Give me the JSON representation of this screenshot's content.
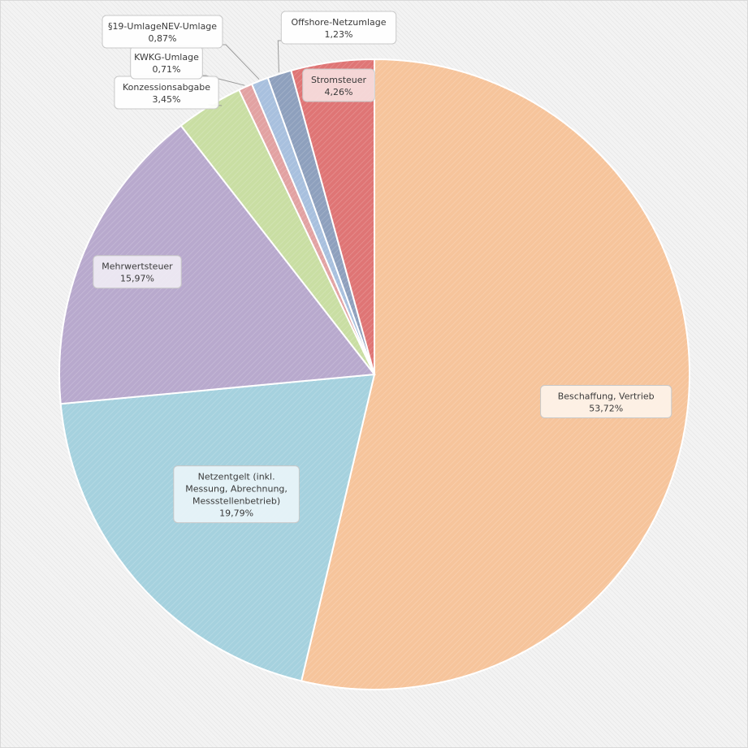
{
  "chart_data": {
    "type": "pie",
    "title": "",
    "slices": [
      {
        "label": "Beschaffung, Vertrieb",
        "value": 53.72,
        "value_text": "53,72%",
        "color": "#f6c49b"
      },
      {
        "label": "Netzentgelt (inkl. Messung, Abrechnung, Messstellenbetrieb)",
        "value": 19.79,
        "value_text": "19,79%",
        "color": "#a5d1de"
      },
      {
        "label": "Mehrwertsteuer",
        "value": 15.97,
        "value_text": "15,97%",
        "color": "#b8a9cd"
      },
      {
        "label": "Konzessionsabgabe",
        "value": 3.45,
        "value_text": "3,45%",
        "color": "#c9dea3"
      },
      {
        "label": "KWKG-Umlage",
        "value": 0.71,
        "value_text": "0,71%",
        "color": "#e2a2a2"
      },
      {
        "label": "§19-UmlageNEV-Umlage",
        "value": 0.87,
        "value_text": "0,87%",
        "color": "#a8c0de"
      },
      {
        "label": "Offshore-Netzumlage",
        "value": 1.23,
        "value_text": "1,23%",
        "color": "#8ea0bd"
      },
      {
        "label": "Stromsteuer",
        "value": 4.26,
        "value_text": "4,26%",
        "color": "#df7575"
      }
    ]
  }
}
